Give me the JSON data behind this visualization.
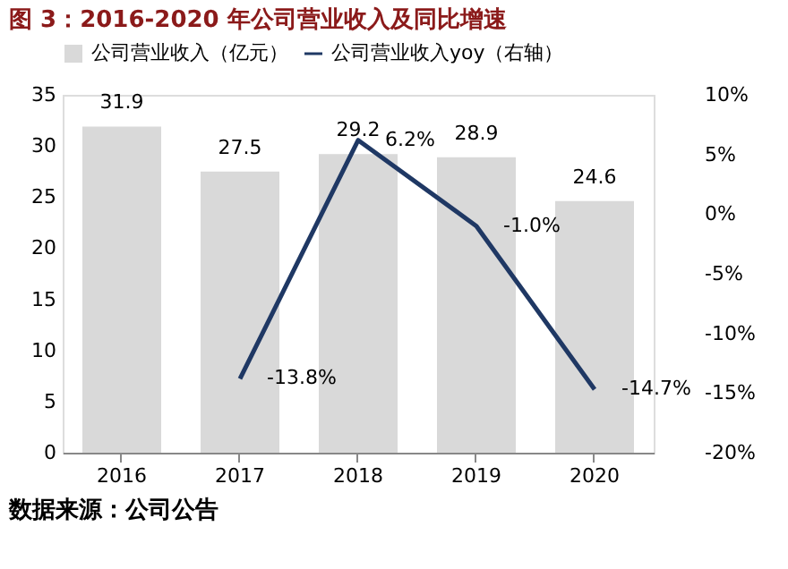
{
  "chart_data": {
    "type": "bar",
    "title": "图 3：2016-2020 年公司营业收入及同比增速",
    "categories": [
      "2016",
      "2017",
      "2018",
      "2019",
      "2020"
    ],
    "series": [
      {
        "name": "公司营业收入（亿元）",
        "color": "#d9d9d9",
        "values": [
          31.9,
          27.5,
          29.2,
          28.9,
          24.6
        ],
        "value_labels": [
          "31.9",
          "27.5",
          "29.2",
          "28.9",
          "24.6"
        ]
      },
      {
        "name": "公司营业收入yoy（右轴）",
        "type": "line",
        "axis": "y2",
        "color": "#1f3864",
        "values": [
          null,
          -13.8,
          6.2,
          -1.0,
          -14.7
        ],
        "value_labels": [
          null,
          "-13.8%",
          "6.2%",
          "-1.0%",
          "-14.7%"
        ]
      }
    ],
    "ylim": [
      0,
      35
    ],
    "yticks": [
      0,
      5,
      10,
      15,
      20,
      25,
      30,
      35
    ],
    "y2lim": [
      -20,
      10
    ],
    "y2ticks": [
      {
        "value": -20,
        "label": "-20%"
      },
      {
        "value": -15,
        "label": "-15%"
      },
      {
        "value": -10,
        "label": "-10%"
      },
      {
        "value": -5,
        "label": "-5%"
      },
      {
        "value": 0,
        "label": "0%"
      },
      {
        "value": 5,
        "label": "5%"
      },
      {
        "value": 10,
        "label": "10%"
      }
    ],
    "legend": "top",
    "grid": false,
    "marker": "none",
    "line_style": "solid",
    "annotations": [
      "数据来源：公司公告"
    ]
  }
}
